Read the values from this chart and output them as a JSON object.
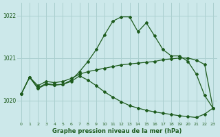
{
  "background_color": "#cce8ea",
  "line_color": "#1e5c1e",
  "grid_color": "#aacfcf",
  "title": "Graphe pression niveau de la mer (hPa)",
  "ylim": [
    1019.5,
    1022.3
  ],
  "xlim": [
    -0.5,
    23.5
  ],
  "yticks": [
    1020,
    1021,
    1022
  ],
  "xticks": [
    0,
    1,
    2,
    3,
    4,
    5,
    6,
    7,
    8,
    9,
    10,
    11,
    12,
    13,
    14,
    15,
    16,
    17,
    18,
    19,
    20,
    21,
    22,
    23
  ],
  "line1_x": [
    0,
    1,
    2,
    3,
    4,
    5,
    6,
    7,
    8,
    9,
    10,
    11,
    12,
    13,
    14,
    15,
    16,
    17,
    18,
    19,
    20,
    21,
    22,
    23
  ],
  "line1_y": [
    1020.15,
    1020.55,
    1020.35,
    1020.45,
    1020.42,
    1020.45,
    1020.52,
    1020.62,
    1020.68,
    1020.72,
    1020.76,
    1020.8,
    1020.84,
    1020.86,
    1020.88,
    1020.9,
    1020.92,
    1020.96,
    1020.98,
    1021.0,
    1021.0,
    1020.95,
    1020.85,
    1019.82
  ],
  "line2_x": [
    0,
    1,
    2,
    3,
    4,
    5,
    6,
    7,
    8,
    9,
    10,
    11,
    12,
    13,
    14,
    15,
    16,
    17,
    18,
    19,
    20,
    21,
    22,
    23
  ],
  "line2_y": [
    1020.15,
    1020.55,
    1020.3,
    1020.4,
    1020.37,
    1020.38,
    1020.48,
    1020.68,
    1020.92,
    1021.2,
    1021.55,
    1021.87,
    1021.97,
    1021.97,
    1021.62,
    1021.83,
    1021.52,
    1021.2,
    1021.05,
    1021.05,
    1020.92,
    1020.62,
    1020.12,
    1019.82
  ],
  "line3_x": [
    0,
    1,
    2,
    3,
    4,
    5,
    6,
    7,
    8,
    9,
    10,
    11,
    12,
    13,
    14,
    15,
    16,
    17,
    18,
    19,
    20,
    21,
    22,
    23
  ],
  "line3_y": [
    1020.15,
    1020.55,
    1020.28,
    1020.38,
    1020.36,
    1020.38,
    1020.45,
    1020.58,
    1020.48,
    1020.35,
    1020.2,
    1020.08,
    1019.97,
    1019.88,
    1019.82,
    1019.77,
    1019.73,
    1019.7,
    1019.67,
    1019.64,
    1019.62,
    1019.6,
    1019.68,
    1019.82
  ]
}
